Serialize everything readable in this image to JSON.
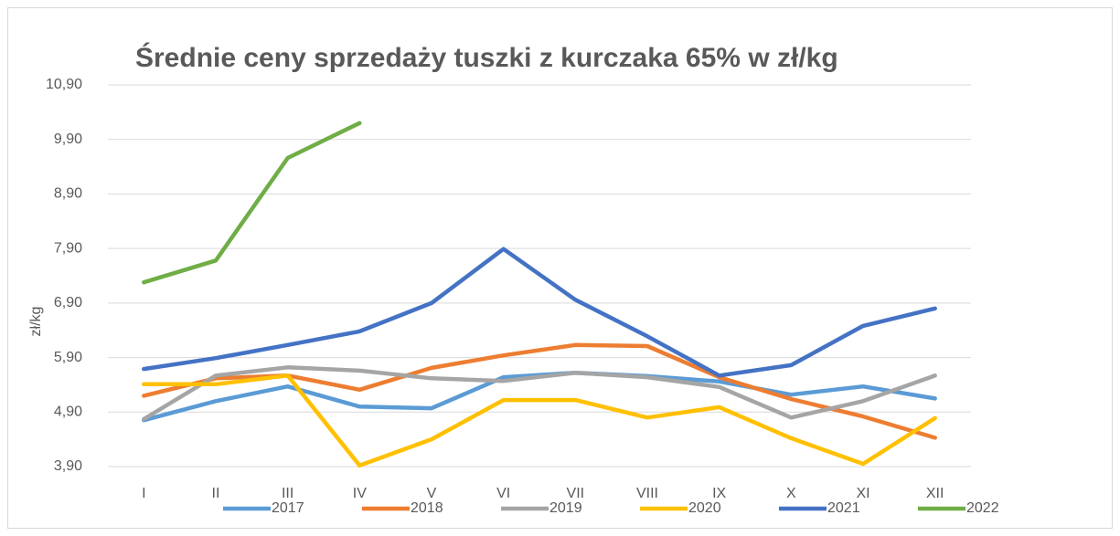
{
  "chart_data": {
    "type": "line",
    "title": "Średnie ceny sprzedaży tuszki z kurczaka 65% w zł/kg",
    "y_label": "zł/kg",
    "categories": [
      "I",
      "II",
      "III",
      "IV",
      "V",
      "VI",
      "VII",
      "VIII",
      "IX",
      "X",
      "XI",
      "XII"
    ],
    "series": [
      {
        "name": "2017",
        "color": "#5b9bd5",
        "values": [
          4.75,
          5.1,
          5.37,
          5.0,
          4.97,
          5.54,
          5.62,
          5.56,
          5.46,
          5.22,
          5.37,
          5.15
        ]
      },
      {
        "name": "2018",
        "color": "#ed7d31",
        "values": [
          5.2,
          5.52,
          5.57,
          5.31,
          5.71,
          5.94,
          6.13,
          6.11,
          5.54,
          5.14,
          4.82,
          4.43
        ]
      },
      {
        "name": "2019",
        "color": "#a5a5a5",
        "values": [
          4.77,
          5.57,
          5.72,
          5.66,
          5.52,
          5.47,
          5.62,
          5.54,
          5.36,
          4.8,
          5.1,
          5.57
        ]
      },
      {
        "name": "2020",
        "color": "#ffc000",
        "values": [
          5.41,
          5.41,
          5.57,
          3.92,
          4.4,
          5.12,
          5.12,
          4.8,
          4.99,
          4.42,
          3.95,
          4.79
        ]
      },
      {
        "name": "2021",
        "color": "#4472c4",
        "values": [
          5.69,
          5.89,
          6.13,
          6.38,
          6.9,
          7.89,
          6.96,
          6.29,
          5.57,
          5.76,
          6.48,
          6.8
        ]
      },
      {
        "name": "2022",
        "color": "#70ad47",
        "values": [
          7.28,
          7.68,
          9.56,
          10.2,
          null,
          null,
          null,
          null,
          null,
          null,
          null,
          null
        ]
      }
    ],
    "ylim": [
      3.9,
      10.9
    ],
    "yticks": [
      {
        "value": 3.9,
        "label": "3,90"
      },
      {
        "value": 4.9,
        "label": "4,90"
      },
      {
        "value": 5.9,
        "label": "5,90"
      },
      {
        "value": 6.9,
        "label": "6,90"
      },
      {
        "value": 7.9,
        "label": "7,90"
      },
      {
        "value": 8.9,
        "label": "8,90"
      },
      {
        "value": 9.9,
        "label": "9,90"
      },
      {
        "value": 10.9,
        "label": "10,90"
      }
    ],
    "grid": true,
    "legend": "bottom"
  }
}
